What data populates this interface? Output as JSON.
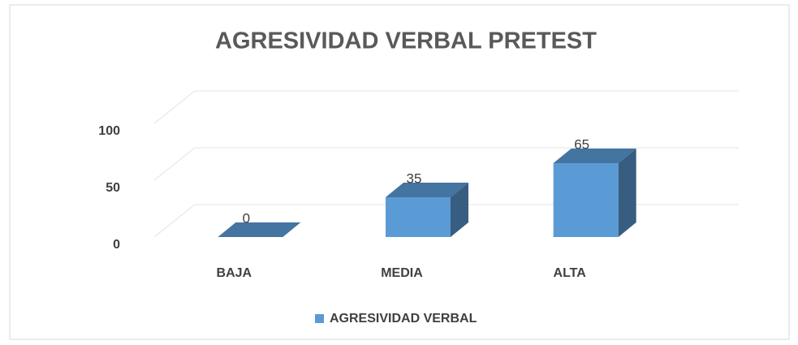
{
  "chart_data": {
    "type": "bar3d",
    "title": "AGRESIVIDAD VERBAL PRETEST",
    "categories": [
      "BAJA",
      "MEDIA",
      "ALTA"
    ],
    "series": [
      {
        "name": "AGRESIVIDAD VERBAL",
        "color": "#5b9bd5",
        "values": [
          0,
          35,
          65
        ]
      }
    ],
    "ylim": [
      0,
      100
    ],
    "yticks": [
      0,
      50,
      100
    ],
    "grid": true,
    "legend": "bottom"
  }
}
